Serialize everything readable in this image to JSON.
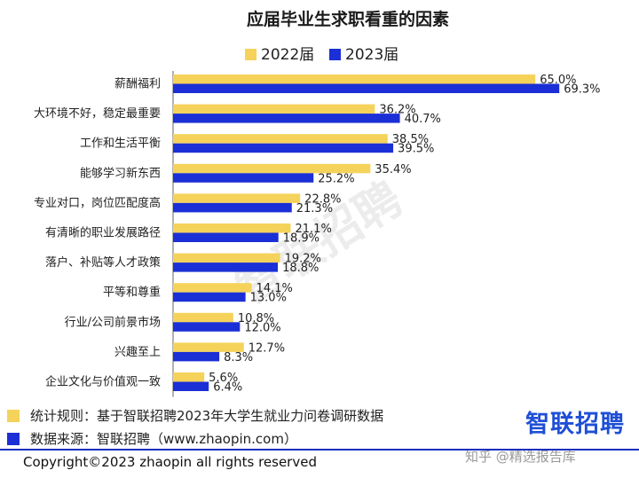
{
  "chart_data": {
    "type": "bar",
    "orientation": "horizontal",
    "title": "应届毕业生求职看重的因素",
    "categories": [
      "薪酬福利",
      "大环境不好，稳定最重要",
      "工作和生活平衡",
      "能够学习新东西",
      "专业对口，岗位匹配度高",
      "有清晰的职业发展路径",
      "落户、补贴等人才政策",
      "平等和尊重",
      "行业/公司前景市场",
      "兴趣至上",
      "企业文化与价值观一致"
    ],
    "series": [
      {
        "name": "2022届",
        "color": "#F5D25A",
        "values": [
          65.0,
          36.2,
          38.5,
          35.4,
          22.8,
          21.1,
          19.2,
          14.1,
          10.8,
          12.7,
          5.6
        ]
      },
      {
        "name": "2023届",
        "color": "#1B2FD6",
        "values": [
          69.3,
          40.7,
          39.5,
          25.2,
          21.3,
          18.9,
          18.8,
          13.0,
          12.0,
          8.3,
          6.4
        ]
      }
    ],
    "value_suffix": "%",
    "xlim": [
      0,
      100
    ],
    "grid": false,
    "legend_position": "top-center"
  },
  "notes": [
    {
      "label": "统计规则：基于智联招聘2023年大学生就业力问卷调研数据",
      "color": "#F5D25A"
    },
    {
      "label": "数据来源：智联招聘（www.zhaopin.com）",
      "color": "#1B2FD6"
    }
  ],
  "brand": {
    "logo_text": "智联招聘",
    "watermark_text": "智联招聘"
  },
  "zhihu_mark": "知乎 @精选报告库",
  "copyright": "Copyright©2023 zhaopin all rights reserved"
}
